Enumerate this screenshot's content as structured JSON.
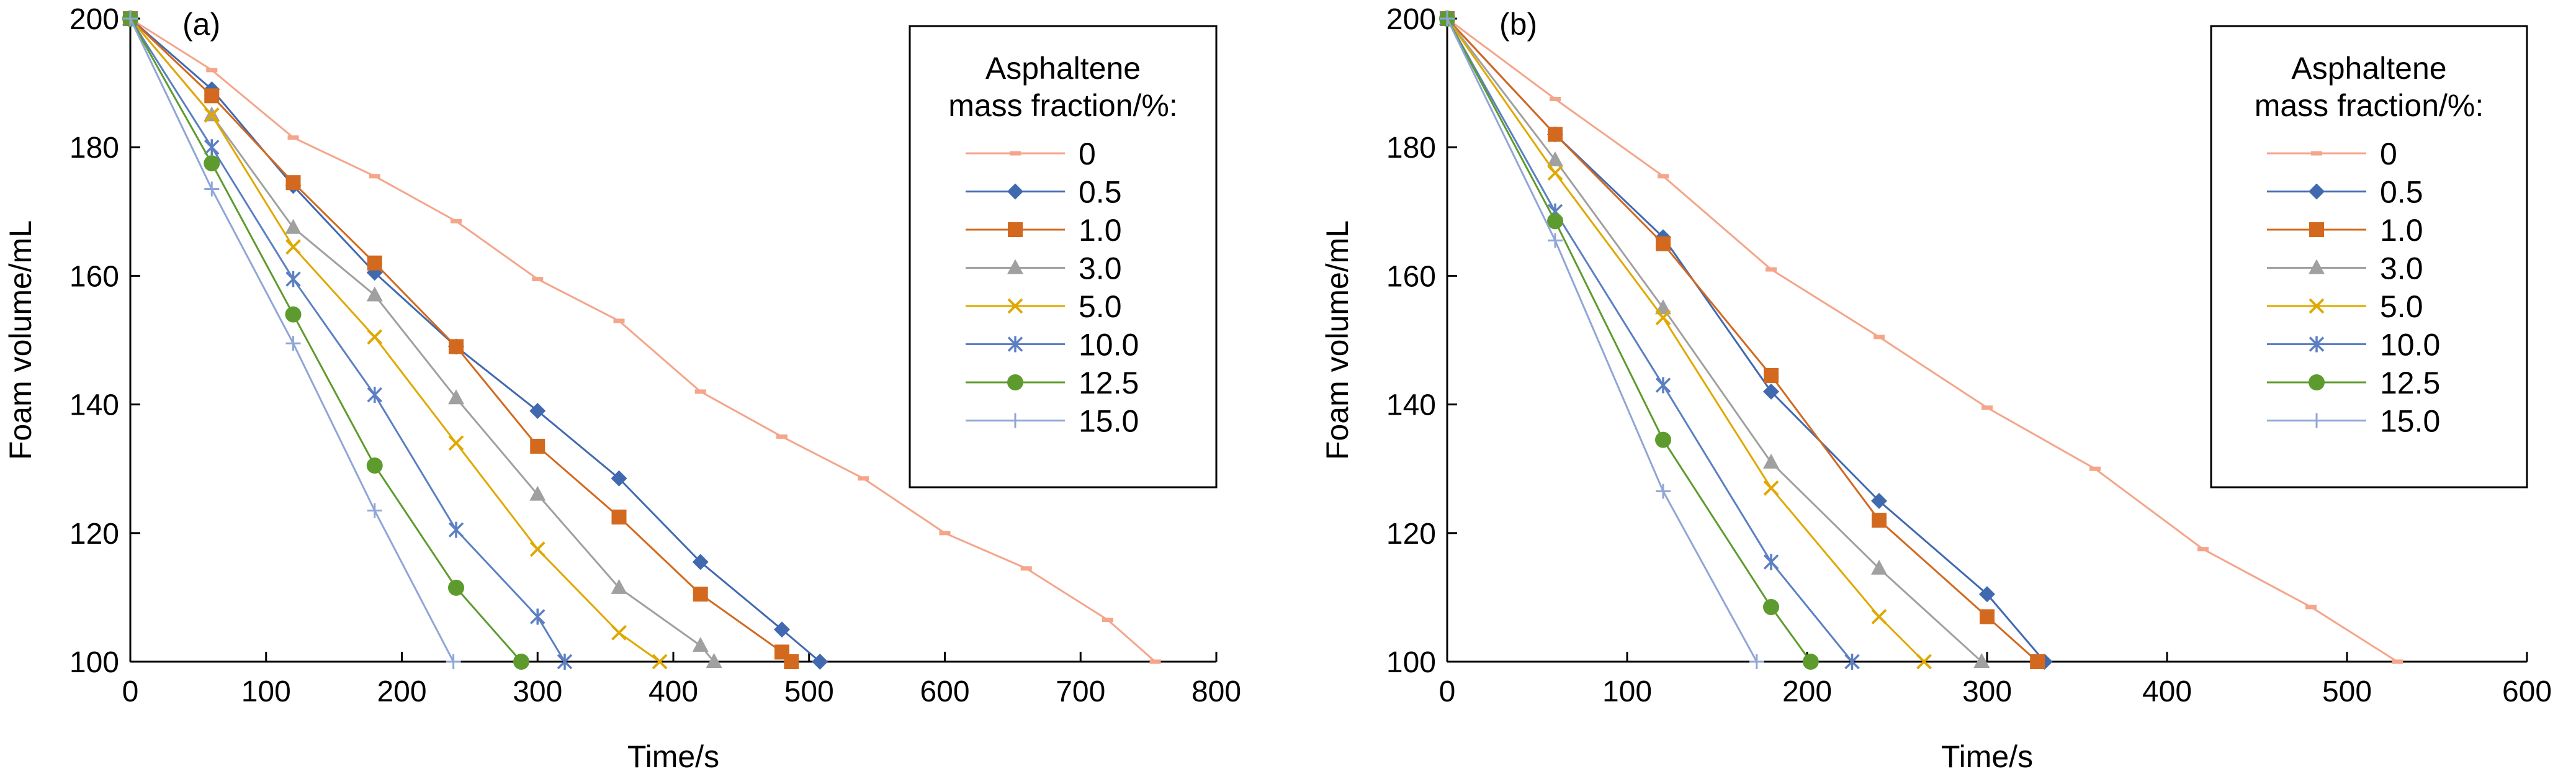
{
  "chart_data": [
    {
      "type": "line",
      "panel_label": "(a)",
      "xlabel": "Time/s",
      "ylabel": "Foam volume/mL",
      "xlim": [
        0,
        800
      ],
      "ylim": [
        100,
        200
      ],
      "xticks": [
        "0",
        "100",
        "200",
        "300",
        "400",
        "500",
        "600",
        "700",
        "800"
      ],
      "yticks": [
        "100",
        "120",
        "140",
        "160",
        "180",
        "200"
      ],
      "grid": false,
      "legend_title": "Asphaltene mass fraction/%:",
      "legend_position": "top-right",
      "series": [
        {
          "name": "0",
          "color": "#F4A58A",
          "marker": "dash",
          "x": [
            0,
            60,
            120,
            180,
            240,
            300,
            360,
            420,
            480,
            540,
            600,
            660,
            720,
            755
          ],
          "y": [
            200,
            192,
            181.5,
            175.5,
            168.5,
            159.5,
            153,
            142,
            135,
            128.5,
            120,
            114.5,
            106.5,
            100
          ]
        },
        {
          "name": "0.5",
          "color": "#4169B0",
          "marker": "diamond",
          "x": [
            0,
            60,
            120,
            180,
            240,
            300,
            360,
            420,
            480,
            508
          ],
          "y": [
            200,
            189,
            174,
            160.5,
            149,
            139,
            128.5,
            115.5,
            105,
            100
          ]
        },
        {
          "name": "1.0",
          "color": "#D2691E",
          "marker": "square",
          "x": [
            0,
            60,
            120,
            180,
            240,
            300,
            360,
            420,
            480,
            487
          ],
          "y": [
            200,
            188,
            174.5,
            162,
            149,
            133.5,
            122.5,
            110.5,
            101.5,
            100
          ]
        },
        {
          "name": "3.0",
          "color": "#A0A0A0",
          "marker": "triangle",
          "x": [
            0,
            60,
            120,
            180,
            240,
            300,
            360,
            420,
            430
          ],
          "y": [
            200,
            185,
            167.5,
            157,
            141,
            126,
            111.5,
            102.5,
            100
          ]
        },
        {
          "name": "5.0",
          "color": "#E0A800",
          "marker": "x",
          "x": [
            0,
            60,
            120,
            180,
            240,
            300,
            360,
            390
          ],
          "y": [
            200,
            185,
            164.5,
            150.5,
            134,
            117.5,
            104.5,
            100
          ]
        },
        {
          "name": "10.0",
          "color": "#5B7FC2",
          "marker": "star",
          "x": [
            0,
            60,
            120,
            180,
            240,
            300,
            320
          ],
          "y": [
            200,
            180,
            159.5,
            141.5,
            120.5,
            107,
            100
          ]
        },
        {
          "name": "12.5",
          "color": "#5E9B2E",
          "marker": "circle",
          "x": [
            0,
            60,
            120,
            180,
            240,
            288
          ],
          "y": [
            200,
            177.5,
            154,
            130.5,
            111.5,
            100
          ]
        },
        {
          "name": "15.0",
          "color": "#8FA6D6",
          "marker": "plus",
          "x": [
            0,
            60,
            120,
            180,
            238
          ],
          "y": [
            200,
            173.5,
            149.5,
            123.5,
            100
          ]
        }
      ]
    },
    {
      "type": "line",
      "panel_label": "(b)",
      "xlabel": "Time/s",
      "ylabel": "Foam volume/mL",
      "xlim": [
        0,
        600
      ],
      "ylim": [
        100,
        200
      ],
      "xticks": [
        "0",
        "100",
        "200",
        "300",
        "400",
        "500",
        "600"
      ],
      "yticks": [
        "100",
        "120",
        "140",
        "160",
        "180",
        "200"
      ],
      "grid": false,
      "legend_title": "Asphaltene mass fraction/%:",
      "legend_position": "top-right",
      "series": [
        {
          "name": "0",
          "color": "#F4A58A",
          "marker": "dash",
          "x": [
            0,
            60,
            120,
            180,
            240,
            300,
            360,
            420,
            480,
            528
          ],
          "y": [
            200,
            187.5,
            175.5,
            161,
            150.5,
            139.5,
            130,
            117.5,
            108.5,
            100
          ]
        },
        {
          "name": "0.5",
          "color": "#4169B0",
          "marker": "diamond",
          "x": [
            0,
            60,
            120,
            180,
            240,
            300,
            332
          ],
          "y": [
            200,
            182,
            166,
            142,
            125,
            110.5,
            100
          ]
        },
        {
          "name": "1.0",
          "color": "#D2691E",
          "marker": "square",
          "x": [
            0,
            60,
            120,
            180,
            240,
            300,
            328
          ],
          "y": [
            200,
            182,
            165,
            144.5,
            122,
            107,
            100
          ]
        },
        {
          "name": "3.0",
          "color": "#A0A0A0",
          "marker": "triangle",
          "x": [
            0,
            60,
            120,
            180,
            240,
            297
          ],
          "y": [
            200,
            178,
            155,
            131,
            114.5,
            100
          ]
        },
        {
          "name": "5.0",
          "color": "#E0A800",
          "marker": "x",
          "x": [
            0,
            60,
            120,
            180,
            240,
            265
          ],
          "y": [
            200,
            176,
            153.5,
            127,
            107,
            100
          ]
        },
        {
          "name": "10.0",
          "color": "#5B7FC2",
          "marker": "star",
          "x": [
            0,
            60,
            120,
            180,
            225
          ],
          "y": [
            200,
            170,
            143,
            115.5,
            100
          ]
        },
        {
          "name": "12.5",
          "color": "#5E9B2E",
          "marker": "circle",
          "x": [
            0,
            60,
            120,
            180,
            202
          ],
          "y": [
            200,
            168.5,
            134.5,
            108.5,
            100
          ]
        },
        {
          "name": "15.0",
          "color": "#8FA6D6",
          "marker": "plus",
          "x": [
            0,
            60,
            120,
            172
          ],
          "y": [
            200,
            165.5,
            126.5,
            100
          ]
        }
      ]
    }
  ]
}
